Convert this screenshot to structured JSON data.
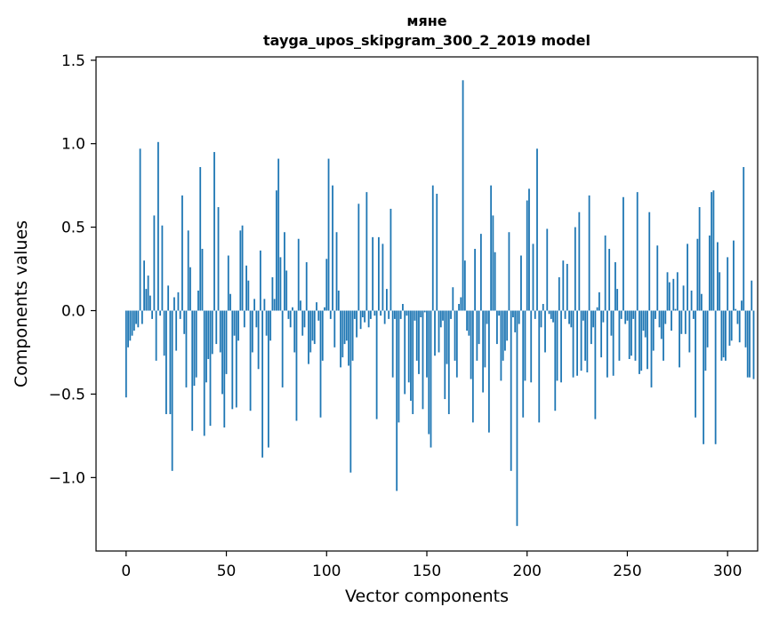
{
  "chart_data": {
    "type": "bar",
    "title_line1": "мяне",
    "title_line2": "tayga_upos_skipgram_300_2_2019 model",
    "xlabel": "Vector components",
    "ylabel": "Components values",
    "xlim": [
      -15,
      315
    ],
    "ylim": [
      -1.44,
      1.52
    ],
    "xticks": [
      0,
      50,
      100,
      150,
      200,
      250,
      300
    ],
    "xtick_labels": [
      "0",
      "50",
      "100",
      "150",
      "200",
      "250",
      "300"
    ],
    "yticks": [
      -1.0,
      -0.5,
      0.0,
      0.5,
      1.0,
      1.5
    ],
    "ytick_labels": [
      "−1.0",
      "−0.5",
      "0.0",
      "0.5",
      "1.0",
      "1.5"
    ],
    "grid": false,
    "bar_color": "#1f77b4",
    "values": [
      -0.52,
      -0.22,
      -0.18,
      -0.15,
      -0.12,
      -0.08,
      -0.1,
      0.97,
      -0.08,
      0.3,
      0.13,
      0.21,
      0.09,
      -0.05,
      0.57,
      -0.3,
      1.01,
      -0.03,
      0.51,
      -0.27,
      -0.62,
      0.15,
      -0.62,
      -0.96,
      0.08,
      -0.24,
      0.11,
      -0.05,
      0.69,
      -0.14,
      -0.46,
      0.48,
      0.26,
      -0.72,
      -0.45,
      -0.4,
      0.12,
      0.86,
      0.37,
      -0.75,
      -0.43,
      -0.29,
      -0.69,
      -0.26,
      0.95,
      -0.2,
      0.62,
      -0.25,
      -0.5,
      -0.7,
      -0.38,
      0.33,
      0.1,
      -0.59,
      -0.15,
      -0.58,
      -0.18,
      0.48,
      0.51,
      -0.1,
      0.27,
      0.18,
      -0.6,
      -0.25,
      0.07,
      -0.1,
      -0.35,
      0.36,
      -0.88,
      0.07,
      -0.15,
      -0.82,
      -0.18,
      0.2,
      0.07,
      0.72,
      0.91,
      0.32,
      -0.46,
      0.47,
      0.24,
      -0.05,
      -0.1,
      0.02,
      -0.25,
      -0.66,
      0.43,
      0.06,
      -0.15,
      -0.1,
      0.29,
      -0.32,
      -0.25,
      -0.18,
      -0.2,
      0.05,
      -0.06,
      -0.64,
      -0.3,
      0.02,
      0.31,
      0.91,
      -0.05,
      0.75,
      -0.22,
      0.47,
      0.12,
      -0.34,
      -0.28,
      -0.2,
      -0.18,
      -0.33,
      -0.97,
      -0.3,
      -0.05,
      -0.16,
      0.64,
      -0.11,
      -0.04,
      -0.07,
      0.71,
      -0.1,
      -0.05,
      0.44,
      -0.03,
      -0.65,
      0.44,
      -0.03,
      0.4,
      -0.08,
      0.13,
      -0.05,
      0.61,
      -0.4,
      -0.05,
      -1.08,
      -0.67,
      -0.05,
      0.04,
      -0.5,
      -0.03,
      -0.43,
      -0.54,
      -0.62,
      -0.06,
      -0.3,
      -0.38,
      -0.04,
      -0.59,
      -0.01,
      -0.4,
      -0.74,
      -0.82,
      0.75,
      -0.27,
      0.7,
      -0.25,
      -0.1,
      -0.06,
      -0.53,
      -0.32,
      -0.62,
      -0.05,
      0.14,
      -0.3,
      -0.4,
      0.04,
      0.08,
      1.38,
      0.3,
      -0.12,
      -0.15,
      -0.41,
      -0.67,
      0.37,
      -0.3,
      -0.2,
      0.46,
      -0.49,
      -0.34,
      -0.08,
      -0.73,
      0.75,
      0.57,
      0.35,
      -0.2,
      -0.03,
      -0.42,
      -0.3,
      -0.24,
      -0.18,
      0.47,
      -0.96,
      -0.04,
      -0.13,
      -1.29,
      -0.08,
      0.33,
      -0.64,
      -0.42,
      0.66,
      0.73,
      -0.43,
      0.4,
      -0.05,
      0.97,
      -0.67,
      -0.1,
      0.04,
      -0.25,
      0.49,
      -0.02,
      -0.05,
      -0.07,
      -0.6,
      -0.42,
      0.2,
      -0.43,
      0.3,
      -0.05,
      0.28,
      -0.08,
      -0.1,
      -0.4,
      0.5,
      -0.39,
      0.59,
      -0.36,
      -0.06,
      -0.3,
      -0.37,
      0.69,
      -0.2,
      -0.1,
      -0.65,
      0.02,
      0.11,
      -0.28,
      -0.07,
      0.45,
      -0.4,
      0.37,
      -0.15,
      -0.39,
      0.29,
      0.13,
      -0.3,
      -0.05,
      0.68,
      -0.08,
      -0.06,
      -0.29,
      -0.27,
      -0.05,
      -0.3,
      0.71,
      -0.38,
      -0.36,
      -0.12,
      -0.16,
      -0.35,
      0.59,
      -0.46,
      -0.24,
      -0.05,
      0.39,
      -0.1,
      -0.17,
      -0.3,
      -0.08,
      0.23,
      0.17,
      -0.12,
      0.19,
      0.01,
      0.23,
      -0.34,
      -0.14,
      0.15,
      -0.14,
      0.4,
      -0.25,
      0.12,
      -0.05,
      -0.64,
      0.43,
      0.62,
      0.1,
      -0.8,
      -0.36,
      -0.22,
      0.45,
      0.71,
      0.72,
      -0.8,
      0.41,
      0.23,
      -0.3,
      -0.28,
      -0.3,
      0.32,
      -0.21,
      -0.18,
      0.42,
      0.01,
      -0.08,
      -0.19,
      0.06,
      0.86,
      -0.22,
      -0.4,
      -0.4,
      0.18,
      -0.41
    ]
  }
}
